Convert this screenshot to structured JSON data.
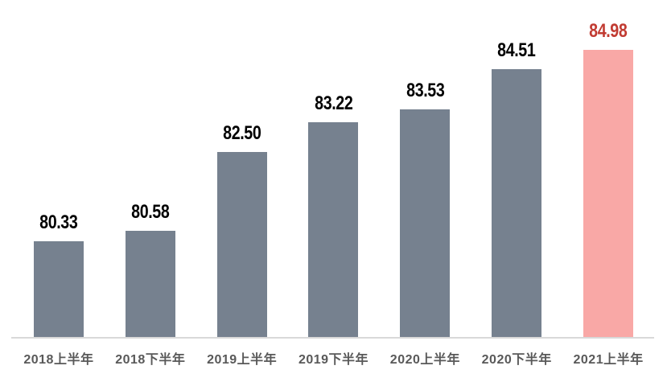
{
  "chart_data": {
    "type": "bar",
    "categories": [
      "2018上半年",
      "2018下半年",
      "2019上半年",
      "2019下半年",
      "2020上半年",
      "2020下半年",
      "2021上半年"
    ],
    "values": [
      80.33,
      80.58,
      82.5,
      83.22,
      83.53,
      84.51,
      84.98
    ],
    "value_labels": [
      "80.33",
      "80.58",
      "82.50",
      "83.22",
      "83.53",
      "84.51",
      "84.98"
    ],
    "title": "",
    "xlabel": "",
    "ylabel": "",
    "ylim": [
      78,
      85.5
    ],
    "grid": false,
    "legend": false,
    "highlight_index": 6,
    "colors": {
      "bar": "#76818F",
      "highlight_bar": "#F9A8A6",
      "value_label": "#000000",
      "highlight_value_label": "#C13B32",
      "axis_line": "#D9D9D9",
      "category_label": "#595959"
    }
  }
}
